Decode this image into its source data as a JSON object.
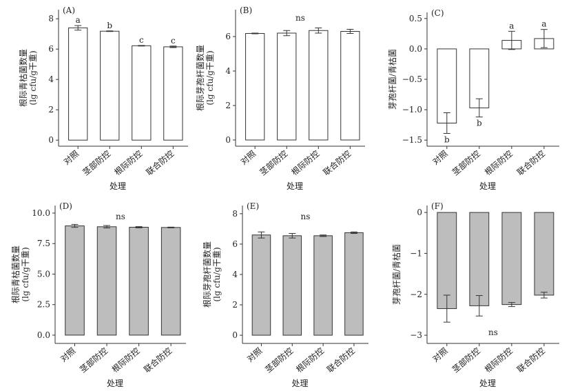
{
  "chart_data": [
    {
      "id": "A",
      "type": "bar",
      "panel_label": "(A)",
      "categories": [
        "对照",
        "茎部防控",
        "根际防控",
        "联合防控"
      ],
      "values": [
        7.4,
        7.18,
        6.22,
        6.15
      ],
      "errors": [
        0.15,
        0.02,
        0.02,
        0.05
      ],
      "significance": [
        "a",
        "b",
        "c",
        "c"
      ],
      "annotation": "",
      "xlabel": "处理",
      "ylabel": [
        "根际青枯菌数量",
        "(lg cfu/g干重)"
      ],
      "ylim": [
        -0.4,
        8.6
      ],
      "yticks": [
        0,
        2,
        4,
        6,
        8
      ],
      "tick_decimals": 0,
      "bar_color": "#ffffff"
    },
    {
      "id": "B",
      "type": "bar",
      "panel_label": "(B)",
      "categories": [
        "对照",
        "茎部防控",
        "根际防控",
        "联合防控"
      ],
      "values": [
        6.18,
        6.2,
        6.35,
        6.3
      ],
      "errors": [
        0.02,
        0.15,
        0.15,
        0.12
      ],
      "significance": [],
      "annotation": "ns",
      "xlabel": "处理",
      "ylabel": [
        "根际芽孢杆菌数量",
        "(lg cfu/g干重)"
      ],
      "ylim": [
        -0.36,
        7.56
      ],
      "yticks": [
        0,
        2,
        4,
        6
      ],
      "tick_decimals": 0,
      "bar_color": "#ffffff"
    },
    {
      "id": "C",
      "type": "bar",
      "panel_label": "(C)",
      "categories": [
        "对照",
        "茎部防控",
        "根际防控",
        "联合防控"
      ],
      "values": [
        -1.22,
        -0.97,
        0.14,
        0.17
      ],
      "errors": [
        0.17,
        0.15,
        0.15,
        0.15
      ],
      "significance": [
        "b",
        "b",
        "a",
        "a"
      ],
      "annotation": "",
      "xlabel": "处理",
      "ylabel": [
        "芽孢杆菌/青枯菌"
      ],
      "ylim": [
        -1.6,
        0.6
      ],
      "yticks": [
        -1.5,
        -1.0,
        -0.5,
        0.0,
        0.5
      ],
      "tick_decimals": 1,
      "bar_color": "#ffffff"
    },
    {
      "id": "D",
      "type": "bar",
      "panel_label": "(D)",
      "categories": [
        "对照",
        "茎部防控",
        "根际防控",
        "联合防控"
      ],
      "values": [
        8.95,
        8.88,
        8.84,
        8.82
      ],
      "errors": [
        0.12,
        0.1,
        0.05,
        0.03
      ],
      "significance": [],
      "annotation": "ns",
      "xlabel": "处理",
      "ylabel": [
        "根际青枯菌数量",
        "(lg cfu/g干重)"
      ],
      "ylim": [
        -0.68,
        10.62
      ],
      "yticks": [
        0.0,
        2.5,
        5.0,
        7.5,
        10.0
      ],
      "tick_decimals": 1,
      "bar_color": "#bdbdbd"
    },
    {
      "id": "E",
      "type": "bar",
      "panel_label": "(E)",
      "categories": [
        "对照",
        "茎部防控",
        "根际防控",
        "联合防控"
      ],
      "values": [
        6.6,
        6.55,
        6.55,
        6.75
      ],
      "errors": [
        0.2,
        0.15,
        0.05,
        0.05
      ],
      "significance": [],
      "annotation": "ns",
      "xlabel": "处理",
      "ylabel": [
        "根际芽孢杆菌数量",
        "(lg cfu/g干重)"
      ],
      "ylim": [
        -0.54,
        8.54
      ],
      "yticks": [
        0,
        2,
        4,
        6,
        8
      ],
      "tick_decimals": 0,
      "bar_color": "#bdbdbd"
    },
    {
      "id": "F",
      "type": "bar",
      "panel_label": "(F)",
      "categories": [
        "对照",
        "茎部防控",
        "根际防控",
        "联合防控"
      ],
      "values": [
        -2.35,
        -2.28,
        -2.25,
        -2.02
      ],
      "errors": [
        0.33,
        0.25,
        0.05,
        0.07
      ],
      "significance": [],
      "annotation": "ns",
      "xlabel": "处理",
      "ylabel": [
        "芽孢杆菌/青枯菌"
      ],
      "ylim": [
        -3.2,
        0.17
      ],
      "yticks": [
        -3,
        -2,
        -1,
        0
      ],
      "tick_decimals": 0,
      "bar_color": "#bdbdbd"
    }
  ]
}
